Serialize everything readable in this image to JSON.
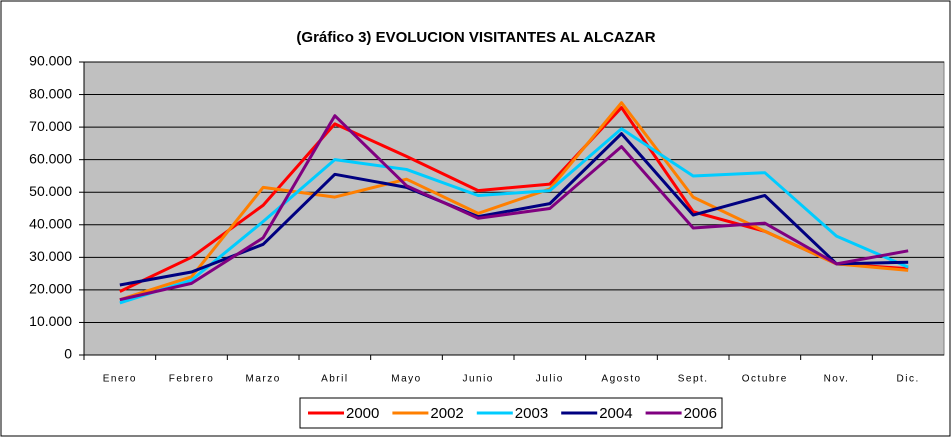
{
  "chart_data": {
    "type": "line",
    "title": "(Gráfico 3) EVOLUCION VISITANTES AL ALCAZAR",
    "categories": [
      "Enero",
      "Febrero",
      "Marzo",
      "Abril",
      "Mayo",
      "Junio",
      "Julio",
      "Agosto",
      "Sept.",
      "Octubre",
      "Nov.",
      "Dic."
    ],
    "series": [
      {
        "name": "2000",
        "color": "#ff0000",
        "values": [
          19500,
          30000,
          46000,
          71000,
          61000,
          50500,
          52500,
          76000,
          44000,
          38000,
          28000,
          26500
        ]
      },
      {
        "name": "2002",
        "color": "#ff7f00",
        "values": [
          17000,
          24000,
          51500,
          48500,
          54000,
          43500,
          51000,
          77500,
          48500,
          38000,
          28000,
          26000
        ]
      },
      {
        "name": "2003",
        "color": "#00ccff",
        "values": [
          16000,
          23000,
          41000,
          60000,
          57000,
          49000,
          50500,
          69500,
          55000,
          56000,
          36500,
          27000
        ]
      },
      {
        "name": "2004",
        "color": "#000080",
        "values": [
          21500,
          25500,
          34000,
          55500,
          51500,
          42500,
          46500,
          68000,
          43000,
          49000,
          28000,
          28500
        ]
      },
      {
        "name": "2006",
        "color": "#800080",
        "values": [
          17000,
          22000,
          36000,
          73500,
          52000,
          42000,
          45000,
          64000,
          39000,
          40500,
          28000,
          32000
        ]
      }
    ],
    "ylim": [
      0,
      90000
    ],
    "yticks": [
      0,
      {
        "value": 10000,
        "label": "10.000"
      },
      {
        "value": 20000,
        "label": "20.000"
      },
      {
        "value": 30000,
        "label": "30.000"
      },
      {
        "value": 40000,
        "label": "40.000"
      },
      {
        "value": 50000,
        "label": "50.000"
      },
      {
        "value": 60000,
        "label": "60.000"
      },
      {
        "value": 70000,
        "label": "70.000"
      },
      {
        "value": 80000,
        "label": "80.000"
      },
      {
        "value": 90000,
        "label": "90.000"
      }
    ],
    "grid": true,
    "legend": "bottom",
    "plot_background": "#c0c0c0"
  }
}
